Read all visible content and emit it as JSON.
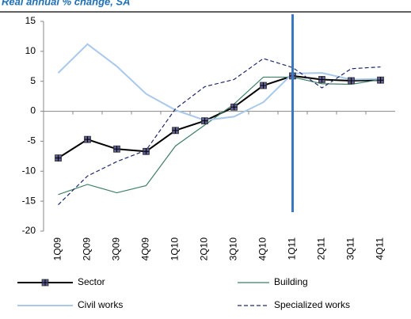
{
  "chart_data": {
    "type": "line",
    "title": "Real annual % change, SA",
    "categories": [
      "1Q09",
      "2Q09",
      "3Q09",
      "4Q09",
      "1Q10",
      "2Q10",
      "3Q10",
      "4Q10",
      "1Q11",
      "2Q11",
      "3Q11",
      "4Q11"
    ],
    "ylim": [
      -20,
      15
    ],
    "yticks": [
      -20,
      -15,
      -10,
      -5,
      0,
      5,
      10,
      15
    ],
    "series": [
      {
        "name": "Sector",
        "color": "#000000",
        "values": [
          -7.8,
          -4.7,
          -6.3,
          -6.7,
          -3.2,
          -1.6,
          0.7,
          4.3,
          5.9,
          5.3,
          5.1,
          5.2
        ]
      },
      {
        "name": "Building",
        "color": "#3f7f68",
        "values": [
          -13.9,
          -12.2,
          -13.6,
          -12.4,
          -5.8,
          -2.3,
          1.2,
          5.7,
          5.7,
          4.6,
          4.5,
          5.3
        ]
      },
      {
        "name": "Civil works",
        "color": "#a9c8ea",
        "values": [
          6.4,
          11.2,
          7.5,
          2.9,
          0.2,
          -1.5,
          -0.9,
          1.5,
          6.3,
          6.4,
          5.3,
          5.4
        ]
      },
      {
        "name": "Specialized works",
        "color": "#1f2a6b",
        "values": [
          -15.6,
          -10.8,
          -8.4,
          -6.5,
          0.4,
          4.1,
          5.3,
          8.8,
          7.3,
          3.9,
          7.1,
          7.4
        ]
      }
    ]
  }
}
